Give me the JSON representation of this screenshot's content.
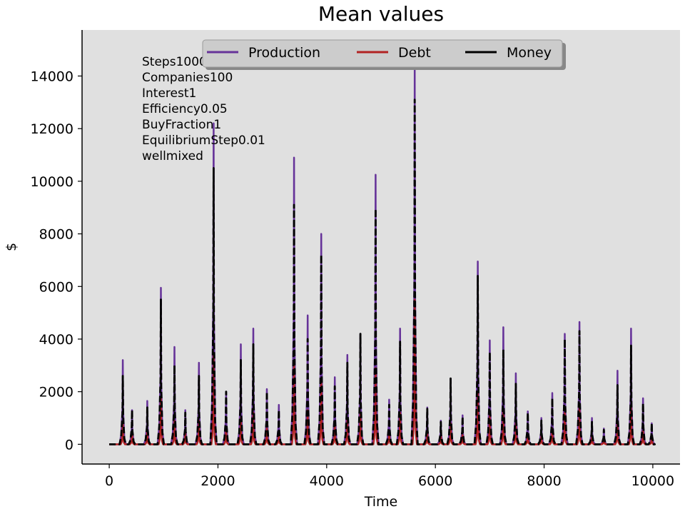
{
  "chart_data": {
    "type": "line",
    "title": "Mean values",
    "xlabel": "Time",
    "ylabel": "$",
    "xlim": [
      -500,
      10500
    ],
    "ylim": [
      -750,
      15750
    ],
    "xticks": [
      0,
      2000,
      4000,
      6000,
      8000,
      10000
    ],
    "yticks": [
      0,
      2000,
      4000,
      6000,
      8000,
      10000,
      12000,
      14000
    ],
    "grid": false,
    "legend_position": "top-center",
    "background_color": "#e0e0e0",
    "annotations": [
      "Steps10000",
      "Companies100",
      "Interest1",
      "Efficiency0.05",
      "BuyFraction1",
      "EquilibriumStep0.01",
      "wellmixed"
    ],
    "series": [
      {
        "name": "Production",
        "color": "#663399",
        "style": "solid"
      },
      {
        "name": "Debt",
        "color": "#b22222",
        "style": "solid"
      },
      {
        "name": "Money",
        "color": "#000000",
        "style": "dashed"
      }
    ],
    "peaks": {
      "x": [
        250,
        420,
        700,
        950,
        1200,
        1400,
        1650,
        1920,
        2150,
        2420,
        2650,
        2900,
        3120,
        3400,
        3650,
        3900,
        4150,
        4380,
        4620,
        4900,
        5150,
        5350,
        5620,
        5850,
        6100,
        6280,
        6500,
        6780,
        7000,
        7250,
        7480,
        7700,
        7950,
        8150,
        8380,
        8650,
        8880,
        9100,
        9350,
        9600,
        9820,
        9980
      ],
      "production": [
        3200,
        1300,
        1650,
        5950,
        3700,
        1300,
        3100,
        12200,
        2000,
        3800,
        4400,
        2100,
        1500,
        10900,
        4900,
        8000,
        2550,
        3400,
        4200,
        10250,
        1700,
        4400,
        14600,
        1400,
        900,
        2500,
        1100,
        6950,
        3950,
        4450,
        2700,
        1250,
        1000,
        1950,
        4200,
        4650,
        1000,
        600,
        2800,
        4400,
        1750,
        800
      ],
      "money": [
        2600,
        1300,
        1400,
        5500,
        3000,
        1200,
        2600,
        10500,
        2000,
        3200,
        3800,
        2000,
        1300,
        9100,
        4000,
        7200,
        2200,
        3100,
        4200,
        8950,
        1500,
        3900,
        13100,
        1350,
        850,
        2500,
        1050,
        6400,
        3500,
        3600,
        2300,
        1200,
        900,
        1750,
        4000,
        4300,
        850,
        550,
        2250,
        3750,
        1550,
        800
      ],
      "debt": [
        800,
        400,
        500,
        1800,
        900,
        400,
        900,
        3400,
        600,
        1000,
        1200,
        600,
        400,
        3000,
        1300,
        2400,
        700,
        1000,
        1200,
        2900,
        500,
        1200,
        5500,
        400,
        300,
        800,
        350,
        2000,
        1100,
        1300,
        800,
        400,
        300,
        600,
        1200,
        1400,
        300,
        200,
        800,
        1400,
        500,
        250
      ]
    }
  }
}
